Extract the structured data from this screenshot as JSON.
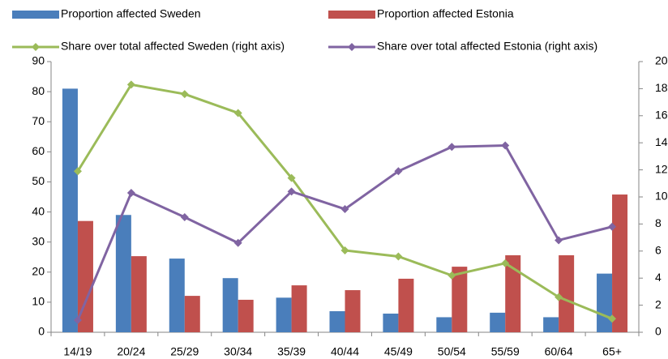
{
  "chart_data": {
    "type": "bar-line",
    "categories": [
      "14/19",
      "20/24",
      "25/29",
      "30/34",
      "35/39",
      "40/44",
      "45/49",
      "50/54",
      "55/59",
      "60/64",
      "65+"
    ],
    "series": [
      {
        "name": "Proportion affected Sweden",
        "type": "bar",
        "color": "#4a7ebb",
        "values": [
          81,
          39,
          24.5,
          18,
          11.5,
          7,
          6.2,
          5,
          6.5,
          5,
          19.5
        ]
      },
      {
        "name": "Proportion affected Estonia",
        "type": "bar",
        "color": "#c0504d",
        "values": [
          37,
          25.3,
          12.1,
          10.8,
          15.6,
          14,
          17.8,
          21.8,
          25.6,
          25.6,
          45.8
        ]
      },
      {
        "name": "Share over total affected Sweden (right axis)",
        "type": "line",
        "axis": "y2",
        "color": "#9bbb59",
        "values": [
          11.9,
          18.3,
          17.6,
          16.2,
          11.4,
          6.05,
          5.6,
          4.2,
          5.1,
          2.6,
          1.0
        ]
      },
      {
        "name": "Share over total affected Estonia (right axis)",
        "type": "line",
        "axis": "y2",
        "color": "#8064a2",
        "values": [
          0.9,
          10.3,
          8.5,
          6.6,
          10.4,
          9.1,
          11.9,
          13.7,
          13.8,
          6.8,
          7.8
        ]
      }
    ],
    "ylim": [
      0,
      90
    ],
    "yticks": [
      0,
      10,
      20,
      30,
      40,
      50,
      60,
      70,
      80,
      90
    ],
    "y2lim": [
      0,
      20
    ],
    "y2ticks": [
      0,
      2,
      4,
      6,
      8,
      10,
      12,
      14,
      16,
      18,
      20
    ],
    "grid": false
  }
}
